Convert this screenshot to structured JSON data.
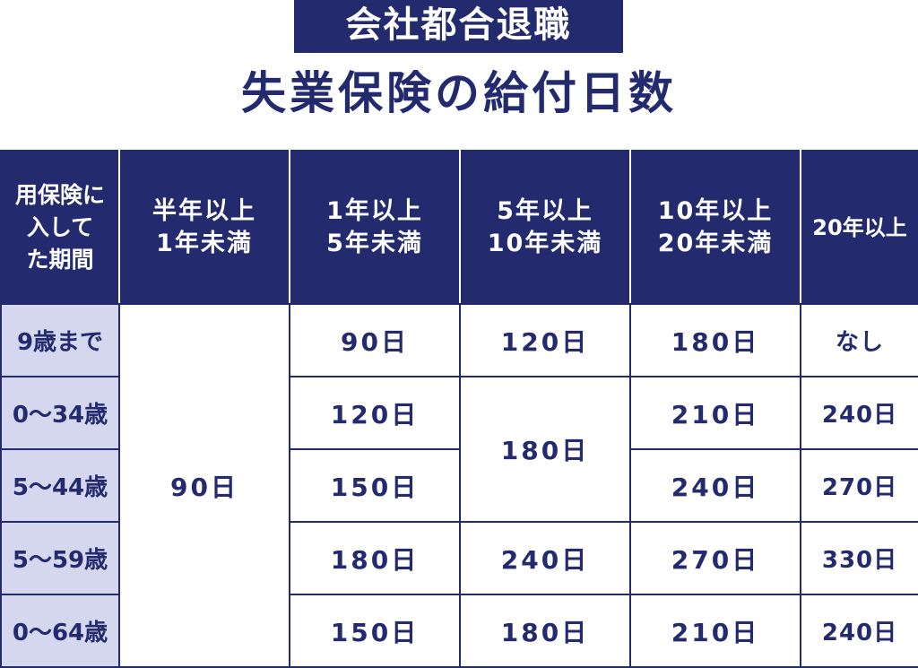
{
  "banner": "会社都合退職",
  "title": "失業保険の給付日数",
  "colors": {
    "navy": "#232a6e",
    "age_bg": "#d4d7ee"
  },
  "table": {
    "corner_header": [
      "用保険に",
      "入して",
      "た期間"
    ],
    "headers": [
      [
        "半年以上",
        "1年未満"
      ],
      [
        "1年以上",
        "5年未満"
      ],
      [
        "5年以上",
        "10年未満"
      ],
      [
        "10年以上",
        "20年未満"
      ],
      [
        "20年以上",
        ""
      ]
    ],
    "ages": [
      "9歳まで",
      "0〜34歳",
      "5〜44歳",
      "5〜59歳",
      "0〜64歳"
    ],
    "merged_col1": "90日",
    "merged_col3_rows2_3": "180日",
    "rows": [
      {
        "c2": "90日",
        "c3": "120日",
        "c4": "180日",
        "c5": "なし"
      },
      {
        "c2": "120日",
        "c4": "210日",
        "c5": "240日"
      },
      {
        "c2": "150日",
        "c4": "240日",
        "c5": "270日"
      },
      {
        "c2": "180日",
        "c3": "240日",
        "c4": "270日",
        "c5": "330日"
      },
      {
        "c2": "150日",
        "c3": "180日",
        "c4": "210日",
        "c5": "240日"
      }
    ]
  }
}
